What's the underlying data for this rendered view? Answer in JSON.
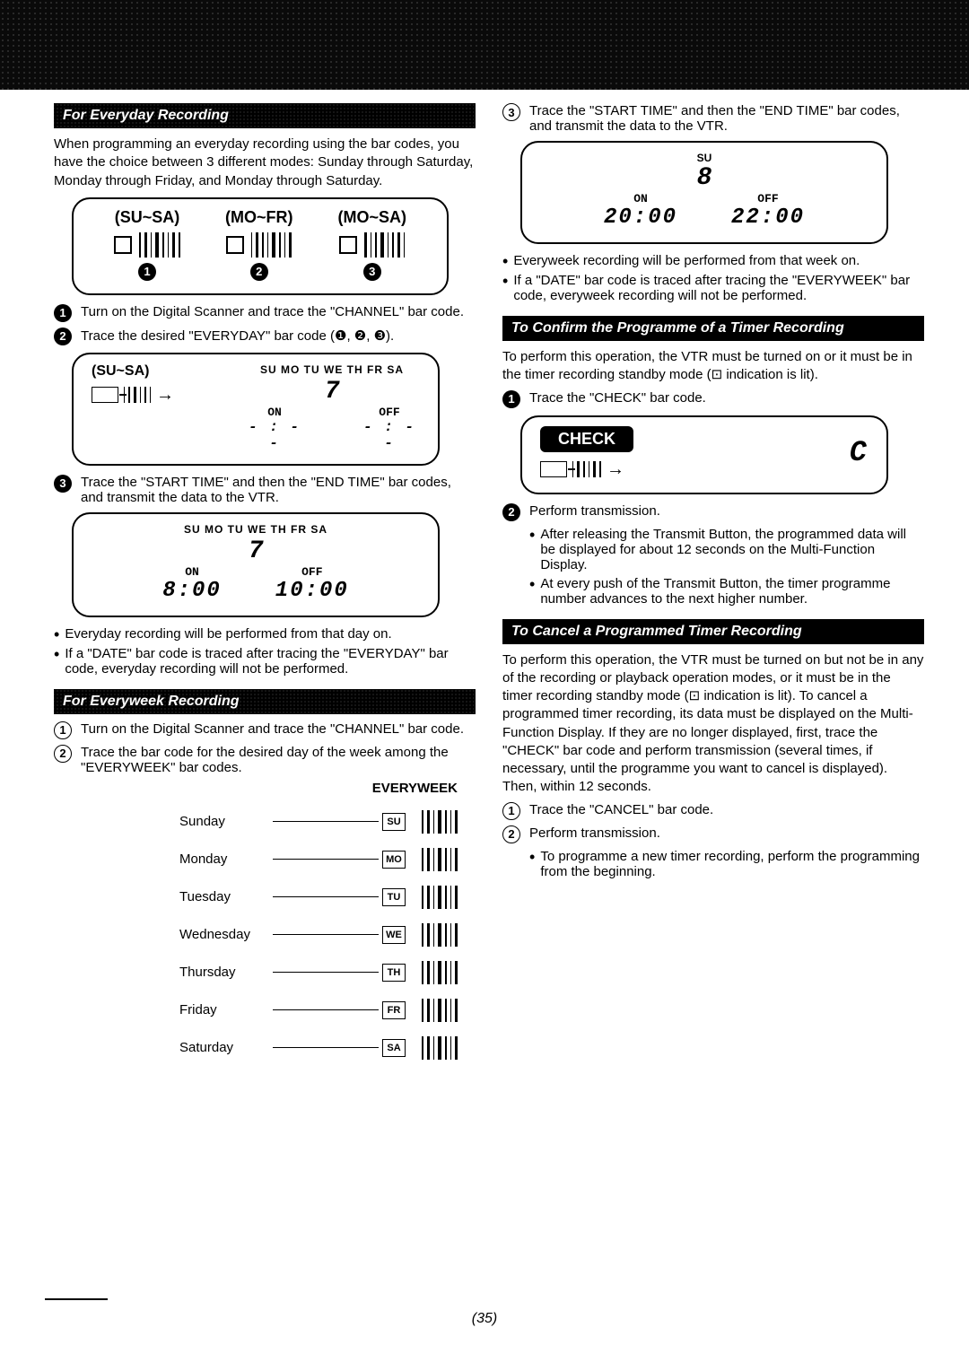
{
  "page_number": "(35)",
  "left": {
    "section1": {
      "title": "For Everyday Recording",
      "intro": "When programming an everyday recording using the bar codes, you have the choice between 3 different modes: Sunday through Saturday, Monday through Friday, and Monday through Saturday.",
      "modes": [
        {
          "label": "(SU~SA)",
          "num": "1"
        },
        {
          "label": "(MO~FR)",
          "num": "2"
        },
        {
          "label": "(MO~SA)",
          "num": "3"
        }
      ],
      "steps": [
        {
          "num": "1",
          "text": "Turn on the Digital Scanner and trace the \"CHANNEL\" bar code."
        },
        {
          "num": "2",
          "text": "Trace the desired \"EVERYDAY\" bar code (❶, ❷, ❸)."
        },
        {
          "num": "3",
          "text": "Trace the \"START TIME\" and then the \"END TIME\" bar codes, and transmit the data to the VTR."
        }
      ],
      "display2": {
        "left_label": "(SU~SA)",
        "days": "SU MO TU WE TH FR SA",
        "ch": "7",
        "on_label": "ON",
        "off_label": "OFF",
        "on_val": "- : - -",
        "off_val": "- : - -"
      },
      "display3": {
        "days": "SU MO TU WE TH FR SA",
        "ch": "7",
        "on_label": "ON",
        "off_label": "OFF",
        "on_val": "8:00",
        "off_val": "10:00"
      },
      "notes": [
        "Everyday recording will be performed from that day on.",
        "If a \"DATE\" bar code is traced after tracing the \"EVERYDAY\" bar code, everyday recording will not be performed."
      ]
    },
    "section2": {
      "title": "For Everyweek Recording",
      "steps": [
        {
          "num": "1",
          "text": "Turn on the Digital Scanner and trace the \"CHANNEL\" bar code."
        },
        {
          "num": "2",
          "text": "Trace the bar code for the desired day of the week among the \"EVERYWEEK\" bar codes."
        }
      ],
      "table_header": "EVERYWEEK",
      "days": [
        {
          "name": "Sunday",
          "code": "SU"
        },
        {
          "name": "Monday",
          "code": "MO"
        },
        {
          "name": "Tuesday",
          "code": "TU"
        },
        {
          "name": "Wednesday",
          "code": "WE"
        },
        {
          "name": "Thursday",
          "code": "TH"
        },
        {
          "name": "Friday",
          "code": "FR"
        },
        {
          "name": "Saturday",
          "code": "SA"
        }
      ]
    }
  },
  "right": {
    "step3": {
      "num": "3",
      "text": "Trace the \"START TIME\" and then the \"END TIME\" bar codes, and transmit the data to the VTR."
    },
    "display": {
      "day": "SU",
      "ch": "8",
      "on_label": "ON",
      "off_label": "OFF",
      "on_val": "20:00",
      "off_val": "22:00"
    },
    "notes": [
      "Everyweek recording will be performed from that week on.",
      "If a \"DATE\" bar code is traced after tracing the \"EVERYWEEK\" bar code, everyweek recording will not be performed."
    ],
    "section_confirm": {
      "title": "To Confirm the Programme of a Timer Recording",
      "intro": "To perform this operation, the VTR must be turned on or it must be in the timer recording standby mode (⊡ indication is lit).",
      "step1": {
        "num": "1",
        "text": "Trace the \"CHECK\" bar code."
      },
      "check_label": "CHECK",
      "check_seg": "C",
      "step2": {
        "num": "2",
        "text": "Perform transmission."
      },
      "sub_bullets": [
        "After releasing the Transmit Button, the programmed data will be displayed for about 12 seconds on the Multi-Function Display.",
        "At every push of the Transmit Button, the timer programme number advances to the next higher number."
      ]
    },
    "section_cancel": {
      "title": "To Cancel a Programmed Timer Recording",
      "intro": "To perform this operation, the VTR must be turned on but not be in any of the recording or playback operation modes, or it must be in the timer recording standby mode (⊡ indication is lit). To cancel a programmed timer recording, its data must be displayed on the Multi-Function Display. If they are no longer displayed, first, trace the \"CHECK\" bar code and perform transmission (several times, if necessary, until the programme you want to cancel is displayed). Then, within 12 seconds.",
      "steps": [
        {
          "num": "1",
          "text": "Trace the \"CANCEL\" bar code."
        },
        {
          "num": "2",
          "text": "Perform transmission."
        }
      ],
      "sub_bullet": "To programme a new timer recording, perform the programming from the beginning."
    }
  }
}
